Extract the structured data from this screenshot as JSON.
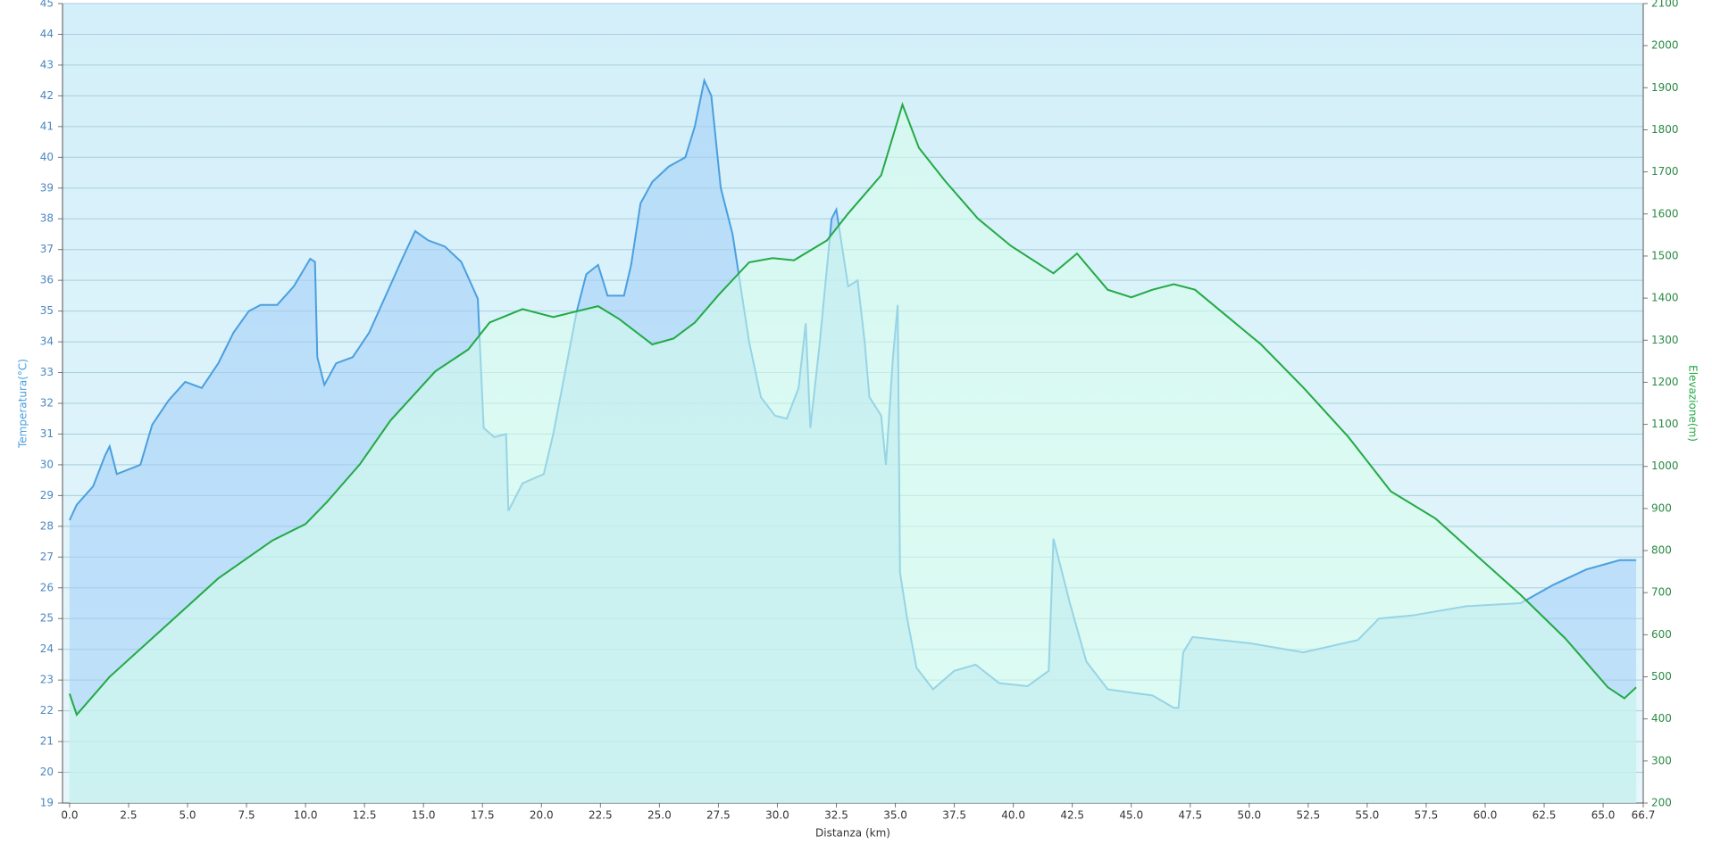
{
  "chart_data": {
    "type": "line",
    "xlabel": "Distanza  (km)",
    "ylabel": "Temperatura(°C)",
    "y2label": "Elevazione(m)",
    "xlim": [
      -0.3,
      66.7
    ],
    "ylim": [
      19,
      45
    ],
    "y2lim": [
      200,
      2100
    ],
    "grid": true,
    "xticks": [
      {
        "value": 0,
        "label": "0.0"
      },
      2.5,
      {
        "value": 5,
        "label": "5.0"
      },
      7.5,
      {
        "value": 10,
        "label": "10.0"
      },
      12.5,
      {
        "value": 15,
        "label": "15.0"
      },
      17.5,
      {
        "value": 20,
        "label": "20.0"
      },
      22.5,
      {
        "value": 25,
        "label": "25.0"
      },
      27.5,
      {
        "value": 30,
        "label": "30.0"
      },
      32.5,
      {
        "value": 35,
        "label": "35.0"
      },
      37.5,
      {
        "value": 40,
        "label": "40.0"
      },
      42.5,
      {
        "value": 45,
        "label": "45.0"
      },
      47.5,
      {
        "value": 50,
        "label": "50.0"
      },
      52.5,
      {
        "value": 55,
        "label": "55.0"
      },
      57.5,
      {
        "value": 60,
        "label": "60.0"
      },
      62.5,
      {
        "value": 65,
        "label": "65.0"
      },
      66.7
    ],
    "yticks": [
      19,
      20,
      21,
      22,
      23,
      24,
      25,
      26,
      27,
      28,
      29,
      30,
      31,
      32,
      33,
      34,
      35,
      36,
      37,
      38,
      39,
      40,
      41,
      42,
      43,
      44,
      45
    ],
    "y2ticks": [
      200,
      300,
      400,
      500,
      600,
      700,
      800,
      900,
      1000,
      1100,
      1200,
      1300,
      1400,
      1500,
      1600,
      1700,
      1800,
      1900,
      2000,
      2100
    ],
    "series": [
      {
        "name": "Temperatura",
        "color": "#4a9fe0",
        "x": [
          0,
          0.3,
          1,
          1.5,
          1.7,
          2,
          3,
          3.5,
          4.2,
          4.9,
          5.6,
          6.3,
          6.95,
          7.6,
          8.1,
          8.8,
          9.5,
          10.2,
          10.4,
          10.5,
          10.8,
          11.3,
          12,
          12.7,
          13.4,
          14.1,
          14.65,
          15.2,
          15.9,
          16.6,
          17.3,
          17.55,
          18,
          18.5,
          18.6,
          19.2,
          20.1,
          20.5,
          21,
          21.5,
          21.9,
          22.4,
          22.8,
          23.5,
          23.8,
          24.2,
          24.7,
          25.4,
          26.1,
          26.5,
          26.9,
          27.2,
          27.6,
          28.1,
          28.8,
          29.3,
          29.9,
          30.4,
          30.9,
          31.2,
          31.4,
          31.8,
          32.3,
          32.5,
          33,
          33.4,
          33.7,
          33.9,
          34.4,
          34.6,
          34.9,
          35.1,
          35.2,
          35.5,
          35.9,
          36.6,
          37.5,
          38.4,
          39.4,
          40.6,
          41.5,
          41.7,
          42.4,
          43.1,
          44,
          44.9,
          45.9,
          46.8,
          47,
          47.2,
          47.6,
          50,
          52.3,
          54.6,
          55.5,
          56.9,
          59.2,
          61.5,
          62.9,
          64.3,
          65.7,
          66.4
        ],
        "values": [
          28.2,
          28.7,
          29.3,
          30.3,
          30.6,
          29.7,
          30,
          31.3,
          32.1,
          32.7,
          32.5,
          33.3,
          34.3,
          35,
          35.2,
          35.2,
          35.8,
          36.7,
          36.6,
          33.5,
          32.6,
          33.3,
          33.5,
          34.3,
          35.5,
          36.7,
          37.6,
          37.3,
          37.1,
          36.6,
          35.4,
          31.2,
          30.9,
          31,
          28.5,
          29.4,
          29.7,
          31,
          33,
          35,
          36.2,
          36.5,
          35.5,
          35.5,
          36.5,
          38.5,
          39.2,
          39.7,
          40,
          41,
          42.5,
          42,
          39,
          37.5,
          34,
          32.2,
          31.6,
          31.5,
          32.5,
          34.6,
          31.2,
          34,
          38,
          38.3,
          35.8,
          36,
          34,
          32.2,
          31.6,
          30,
          33.5,
          35.2,
          26.5,
          25,
          23.4,
          22.7,
          23.3,
          23.5,
          22.9,
          22.8,
          23.3,
          27.6,
          25.5,
          23.6,
          22.7,
          22.6,
          22.5,
          22.1,
          22.1,
          23.9,
          24.4,
          24.2,
          23.9,
          24.3,
          25,
          25.1,
          25.4,
          25.5,
          26.1,
          26.6,
          26.9,
          26.9
        ]
      },
      {
        "name": "Elevazione",
        "color": "#22aa44",
        "axis": "y2",
        "x": [
          0,
          0.3,
          1.7,
          4,
          6.3,
          8.6,
          10,
          10.9,
          12.3,
          13.6,
          15.5,
          16.9,
          17.8,
          19.2,
          20.5,
          22.4,
          23.3,
          24.7,
          25.6,
          26.5,
          27.5,
          28.8,
          29.8,
          30.7,
          32.1,
          33,
          34.4,
          35.1,
          35.3,
          36,
          37.1,
          38.5,
          39.9,
          41.7,
          42.7,
          44,
          45,
          45.9,
          46.8,
          47.7,
          49.1,
          50.5,
          52.3,
          54.2,
          56,
          57.9,
          59.7,
          61.5,
          63.4,
          65.2,
          65.9,
          66.4
        ],
        "values": [
          460,
          410,
          500,
          617,
          734,
          824,
          863,
          915,
          1005,
          1109,
          1226,
          1278,
          1342,
          1374,
          1355,
          1381,
          1350,
          1290,
          1304,
          1342,
          1407,
          1485,
          1495,
          1490,
          1537,
          1601,
          1692,
          1822,
          1860,
          1757,
          1679,
          1589,
          1524,
          1459,
          1506,
          1420,
          1402,
          1420,
          1433,
          1420,
          1355,
          1290,
          1187,
          1070,
          941,
          876,
          785,
          695,
          591,
          475,
          449,
          475
        ]
      }
    ]
  }
}
